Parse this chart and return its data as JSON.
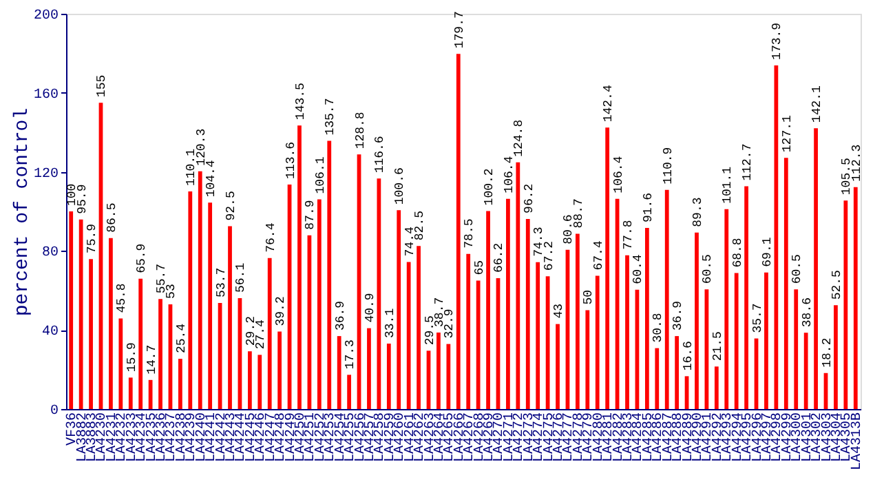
{
  "chart_data": {
    "type": "bar",
    "ylabel": "percent of control",
    "categories": [
      "VF36",
      "LA3882",
      "LA3883",
      "LA4230",
      "LA4231",
      "LA4232",
      "LA4233",
      "LA4234",
      "LA4235",
      "LA4236",
      "LA4237",
      "LA4238",
      "LA4239",
      "LA4240",
      "LA4241",
      "LA4242",
      "LA4243",
      "LA4244",
      "LA4245",
      "LA4246",
      "LA4247",
      "LA4248",
      "LA4249",
      "LA4250",
      "LA4251",
      "LA4252",
      "LA4253",
      "LA4254",
      "LA4255",
      "LA4256",
      "LA4257",
      "LA4258",
      "LA4259",
      "LA4260",
      "LA4261",
      "LA4262",
      "LA4263",
      "LA4264",
      "LA4265",
      "LA4266",
      "LA4267",
      "LA4268",
      "LA4269",
      "LA4270",
      "LA4271",
      "LA4272",
      "LA4273",
      "LA4274",
      "LA4275",
      "LA4276",
      "LA4277",
      "LA4278",
      "LA4279",
      "LA4280",
      "LA4281",
      "LA4282",
      "LA4283",
      "LA4284",
      "LA4285",
      "LA4286",
      "LA4287",
      "LA4288",
      "LA4289",
      "LA4290",
      "LA4291",
      "LA4292",
      "LA4293",
      "LA4294",
      "LA4295",
      "LA4296",
      "LA4297",
      "LA4298",
      "LA4299",
      "LA4300",
      "LA4301",
      "LA4302",
      "LA4303",
      "LA4304",
      "LA4305",
      "LA4313B"
    ],
    "series": [
      {
        "color": "#ff0000",
        "values": [
          100,
          95.9,
          75.9,
          155,
          86.5,
          45.8,
          15.9,
          65.9,
          14.7,
          55.7,
          53,
          25.4,
          110.1,
          120.3,
          104.4,
          53.7,
          92.5,
          56.1,
          29.2,
          27.4,
          76.4,
          39.2,
          113.6,
          143.5,
          87.9,
          106.1,
          135.7,
          36.9,
          17.3,
          128.8,
          40.9,
          116.6,
          33.1,
          100.6,
          74.4,
          82.5,
          29.5,
          38.7,
          32.9,
          179.7,
          78.5,
          65,
          100.2,
          66.2,
          106.4,
          124.8,
          96.2,
          74.3,
          67.2,
          43,
          80.6,
          88.7,
          50,
          67.4,
          142.4,
          106.4,
          77.8,
          60.4,
          91.6,
          30.8,
          110.9,
          36.9,
          16.6,
          89.3,
          60.5,
          21.5,
          101.1,
          68.8,
          112.7,
          35.7,
          69.1,
          173.9,
          127.1,
          60.5,
          38.6,
          142.1,
          18.2,
          52.5,
          105.5,
          112.3
        ]
      }
    ],
    "ylim": [
      0,
      200
    ],
    "yticks": [
      0,
      40,
      80,
      120,
      160,
      200
    ],
    "data_labels": true,
    "grid": false
  }
}
